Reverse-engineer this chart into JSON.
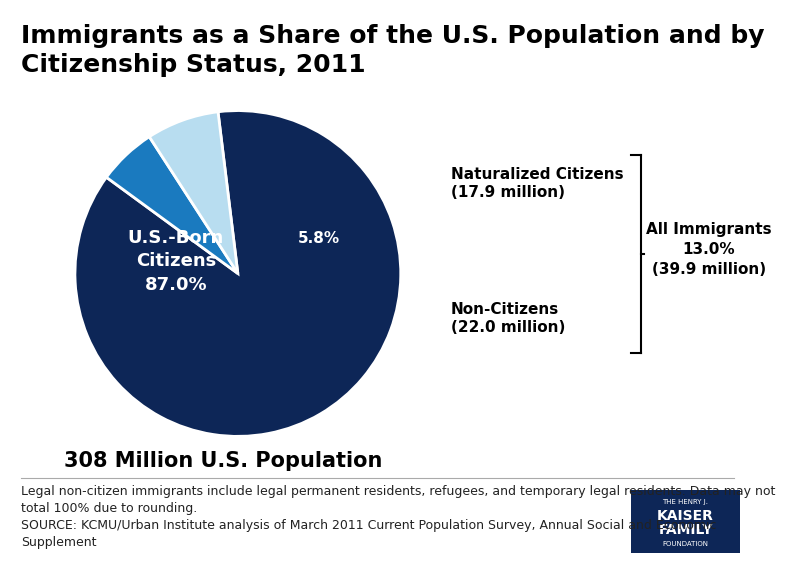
{
  "title": "Immigrants as a Share of the U.S. Population and by\nCitizenship Status, 2011",
  "slices": [
    87.0,
    5.8,
    7.2
  ],
  "colors": [
    "#0d2657",
    "#1a7abf",
    "#b8ddf0"
  ],
  "startangle": 96,
  "us_born_label": "U.S.-Born\nCitizens\n87.0%",
  "naturalized_pct": "5.8%",
  "noncitizen_pct": "7.2%",
  "naturalized_label": "Naturalized Citizens\n(17.9 million)",
  "noncitizen_label": "Non-Citizens\n(22.0 million)",
  "all_immigrants_label": "All Immigrants\n13.0%\n(39.9 million)",
  "population_label": "308 Million U.S. Population",
  "footnote_line1": "Legal non-citizen immigrants include legal permanent residents, refugees, and temporary legal residents. Data may not",
  "footnote_line2": "total 100% due to rounding.",
  "footnote_line3": "SOURCE: KCMU/Urban Institute analysis of March 2011 Current Population Survey, Annual Social and Economic",
  "footnote_line4": "Supplement",
  "background_color": "#ffffff",
  "title_fontsize": 18,
  "inner_label_fontsize": 13,
  "pct_label_fontsize": 11,
  "ext_label_fontsize": 11,
  "population_fontsize": 15,
  "footnote_fontsize": 9,
  "dark_blue": "#0d2657",
  "medium_blue": "#1a7abf",
  "light_blue": "#b8ddf0",
  "logo_top_text": "THE HENRY J.",
  "logo_mid1": "KAISER",
  "logo_mid2": "FAMILY",
  "logo_bot": "FOUNDATION"
}
